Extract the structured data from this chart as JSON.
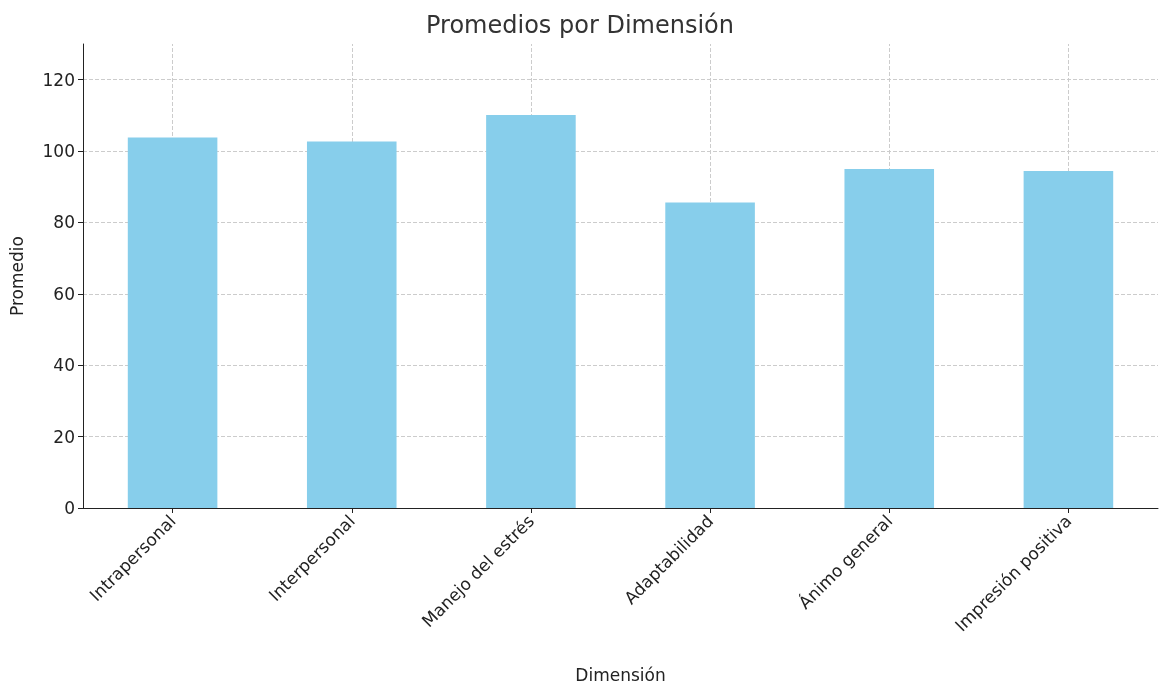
{
  "chart_data": {
    "type": "bar",
    "title": "Promedios por Dimensión",
    "xlabel": "Dimensión",
    "ylabel": "Promedio",
    "categories": [
      "Intrapersonal",
      "Interpersonal",
      "Manejo del estrés",
      "Adaptabilidad",
      "Ánimo general",
      "Impresión positiva"
    ],
    "values": [
      103.8,
      102.7,
      110.1,
      85.6,
      95.0,
      94.4
    ],
    "color": "#87ceeb",
    "ylim": [
      0,
      130
    ],
    "yticks": [
      0,
      20,
      40,
      60,
      80,
      100,
      120
    ],
    "grid": true
  }
}
